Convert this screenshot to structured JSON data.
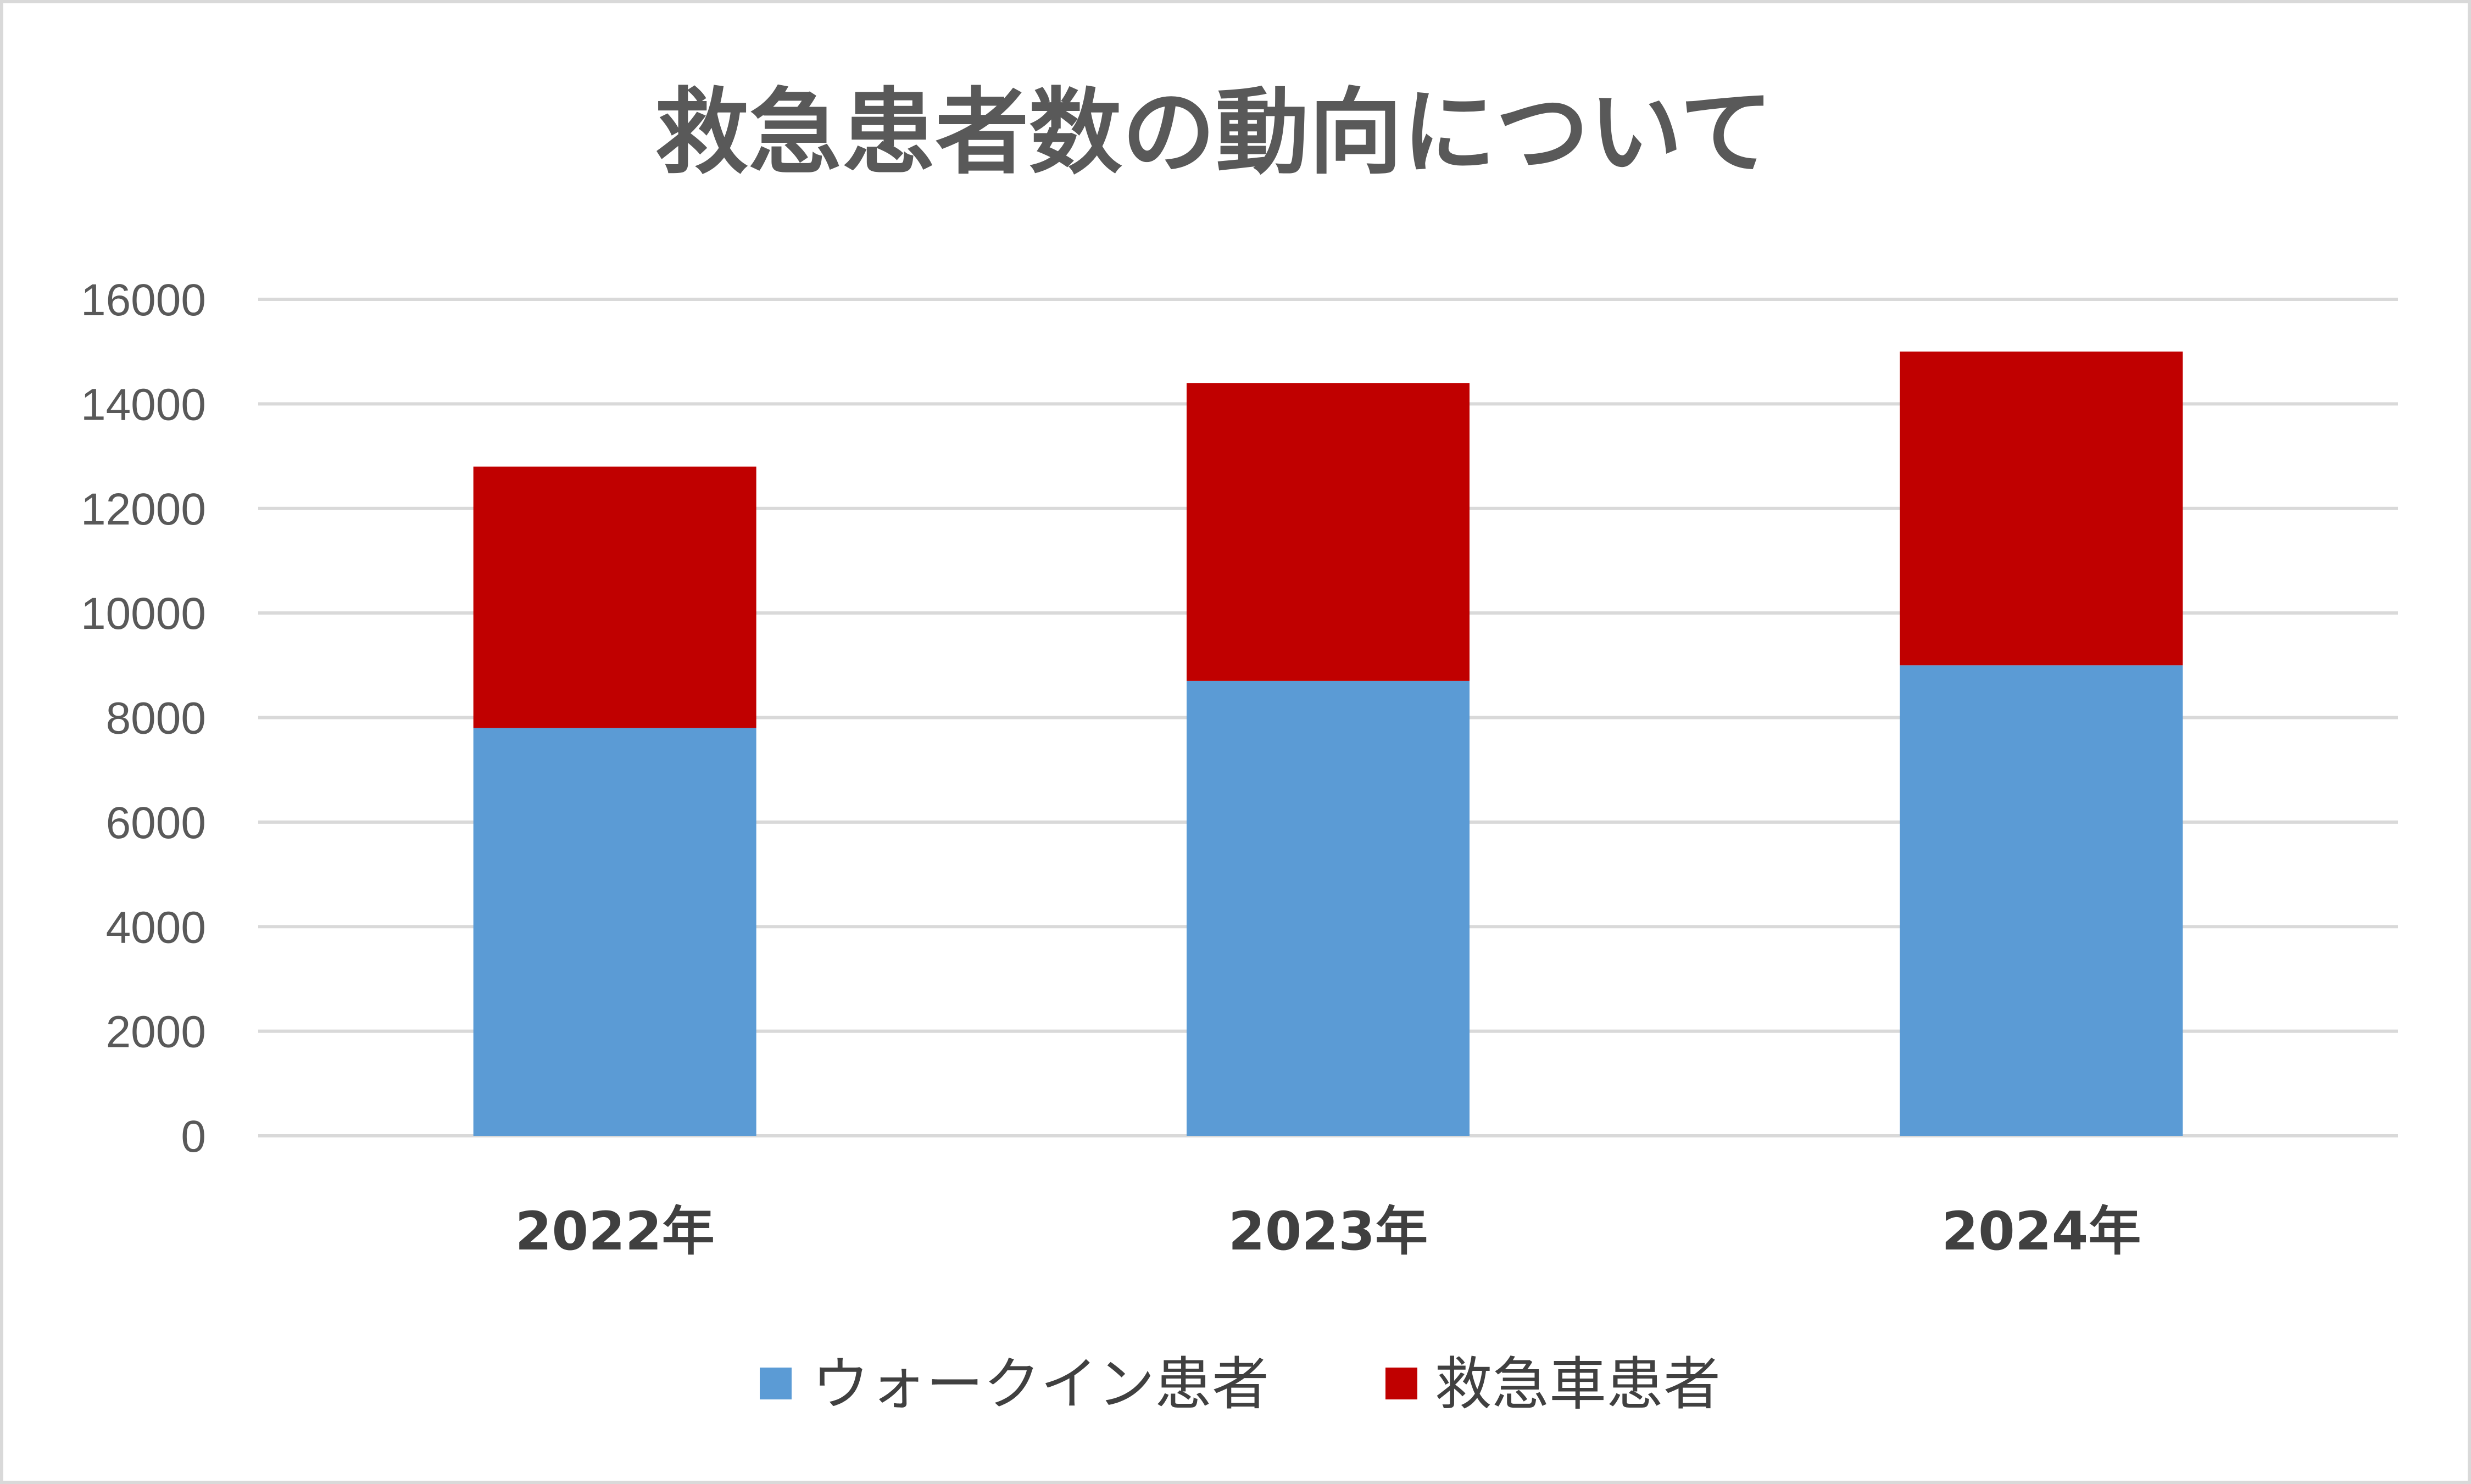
{
  "chart_data": {
    "type": "bar",
    "stacked": true,
    "title": "救急患者数の動向について",
    "categories": [
      "2022年",
      "2023年",
      "2024年"
    ],
    "series": [
      {
        "name": "ウォークイン患者",
        "color": "#5b9bd5",
        "values": [
          7800,
          8700,
          9000
        ]
      },
      {
        "name": "救急車患者",
        "color": "#c00000",
        "values": [
          5000,
          5700,
          6000
        ]
      }
    ],
    "ylim": [
      0,
      16000
    ],
    "yticks": [
      "0",
      "2000",
      "4000",
      "6000",
      "8000",
      "10000",
      "12000",
      "14000",
      "16000"
    ],
    "grid": true,
    "legend_position": "bottom"
  }
}
